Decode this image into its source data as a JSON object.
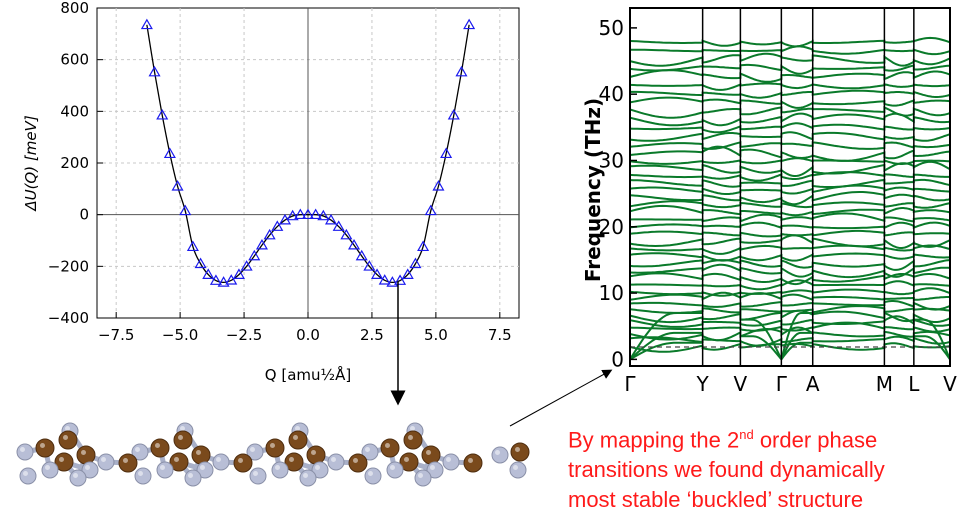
{
  "chart_data": [
    {
      "type": "line",
      "title": "",
      "xlabel": "Q [amu½Å]",
      "ylabel": "ΔU(Q) [meV]",
      "xlim": [
        -8.25,
        8.25
      ],
      "ylim": [
        -400,
        800
      ],
      "xticks": [
        "−7.5",
        "−5.0",
        "−2.5",
        "0.0",
        "2.5",
        "5.0",
        "7.5"
      ],
      "xtick_values": [
        -7.5,
        -5.0,
        -2.5,
        0.0,
        2.5,
        5.0,
        7.5
      ],
      "yticks": [
        "−400",
        "−200",
        "0",
        "200",
        "400",
        "600",
        "800"
      ],
      "ytick_values": [
        -400,
        -200,
        0,
        200,
        400,
        600,
        800
      ],
      "grid": true,
      "line_color": "#000000",
      "marker_color": "#1a1aee",
      "marker": "triangle-open",
      "x": [
        -6.3,
        -6.0,
        -5.7,
        -5.4,
        -5.1,
        -4.8,
        -4.5,
        -4.2,
        -3.9,
        -3.6,
        -3.3,
        -3.0,
        -2.7,
        -2.4,
        -2.1,
        -1.8,
        -1.5,
        -1.2,
        -0.9,
        -0.6,
        -0.3,
        0.0,
        0.3,
        0.6,
        0.9,
        1.2,
        1.5,
        1.8,
        2.1,
        2.4,
        2.7,
        3.0,
        3.3,
        3.6,
        3.9,
        4.2,
        4.5,
        4.8,
        5.1,
        5.4,
        5.7,
        6.0,
        6.3
      ],
      "y": [
        735,
        552,
        385,
        236,
        110,
        15,
        -124,
        -190,
        -232,
        -255,
        -262,
        -254,
        -232,
        -200,
        -160,
        -118,
        -79,
        -46,
        -21,
        -5,
        0,
        0,
        0,
        -5,
        -21,
        -46,
        -79,
        -118,
        -160,
        -200,
        -232,
        -254,
        -262,
        -255,
        -232,
        -190,
        -124,
        15,
        110,
        236,
        385,
        552,
        735
      ]
    },
    {
      "type": "line",
      "title": "",
      "xlabel": "",
      "ylabel": "Frequency (THz)",
      "ylim": [
        -1,
        53
      ],
      "yticks": [
        "0",
        "10",
        "20",
        "30",
        "40",
        "50"
      ],
      "ytick_values": [
        0,
        10,
        20,
        30,
        40,
        50
      ],
      "kpath_labels": [
        "Γ",
        "Y",
        "V",
        "Γ",
        "A",
        "M",
        "L",
        "V"
      ],
      "kpath_positions": [
        0,
        0.227,
        0.345,
        0.473,
        0.571,
        0.795,
        0.887,
        1.0
      ],
      "line_color": "#0a7a2a",
      "zero_line": "dashed"
    }
  ],
  "caption": {
    "line1_pre": "By mapping the 2",
    "line1_sup": "nd",
    "line1_post": " order phase",
    "line2": "transitions we found dynamically",
    "line3": "most stable ‘buckled’ structure"
  }
}
